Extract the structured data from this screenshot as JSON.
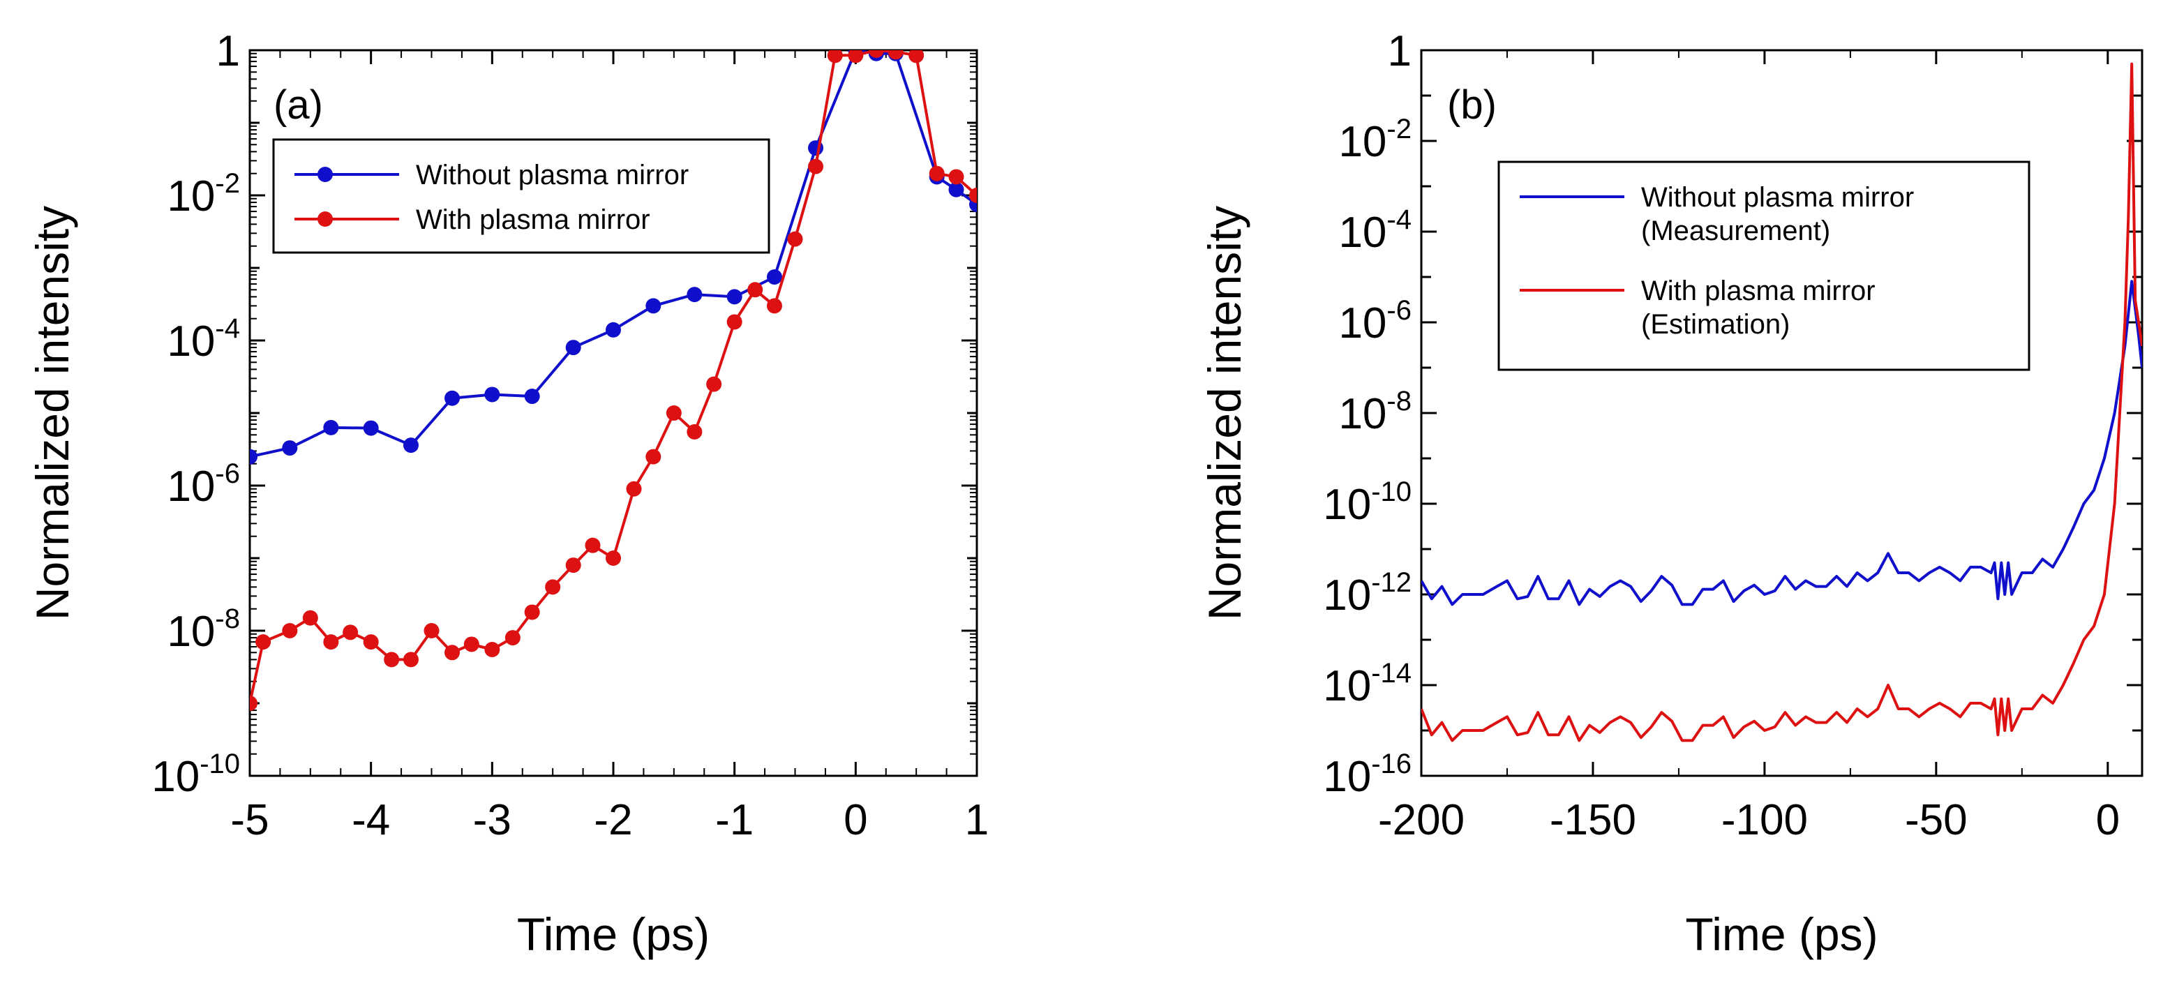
{
  "colors": {
    "without": "#1010cc",
    "with": "#dd1111",
    "axis": "#000000"
  },
  "chart_data": [
    {
      "type": "line",
      "panel_label": "(a)",
      "xlabel": "Time (ps)",
      "ylabel": "Normalized intensity",
      "xlim": [
        -5,
        1
      ],
      "ylim": [
        1e-10,
        1
      ],
      "yscale": "log",
      "x_ticks": [
        {
          "value": -5,
          "label": "-5"
        },
        {
          "value": -4,
          "label": "-4"
        },
        {
          "value": -3,
          "label": "-3"
        },
        {
          "value": -2,
          "label": "-2"
        },
        {
          "value": -1,
          "label": "-1"
        },
        {
          "value": 0,
          "label": "0"
        },
        {
          "value": 1,
          "label": "1"
        }
      ],
      "y_ticks": [
        {
          "exp": 0,
          "base": "1",
          "sup": ""
        },
        {
          "exp": -2,
          "base": "10",
          "sup": "-2"
        },
        {
          "exp": -4,
          "base": "10",
          "sup": "-4"
        },
        {
          "exp": -6,
          "base": "10",
          "sup": "-6"
        },
        {
          "exp": -8,
          "base": "10",
          "sup": "-8"
        },
        {
          "exp": -10,
          "base": "10",
          "sup": "-10"
        }
      ],
      "legend": {
        "position": "upper-left",
        "entries": [
          "Without plasma mirror",
          "With plasma mirror"
        ]
      },
      "series": [
        {
          "name": "Without plasma mirror",
          "color": "#1010cc",
          "markers": true,
          "x": [
            -5.0,
            -4.67,
            -4.33,
            -4.0,
            -3.67,
            -3.33,
            -3.0,
            -2.67,
            -2.33,
            -2.0,
            -1.67,
            -1.33,
            -1.0,
            -0.67,
            -0.33,
            0.0,
            0.17,
            0.33,
            0.67,
            0.83,
            1.0
          ],
          "y": [
            2.5e-06,
            3.3e-06,
            6.3e-06,
            6.2e-06,
            3.6e-06,
            1.6e-05,
            1.8e-05,
            1.7e-05,
            8e-05,
            0.00014,
            0.0003,
            0.00043,
            0.0004,
            0.00075,
            0.045,
            1.0,
            0.9,
            0.9,
            0.018,
            0.012,
            0.0075
          ]
        },
        {
          "name": "With plasma mirror",
          "color": "#dd1111",
          "markers": true,
          "x": [
            -5.0,
            -4.89,
            -4.67,
            -4.5,
            -4.33,
            -4.17,
            -4.0,
            -3.83,
            -3.67,
            -3.5,
            -3.33,
            -3.17,
            -3.0,
            -2.83,
            -2.67,
            -2.5,
            -2.33,
            -2.17,
            -2.0,
            -1.83,
            -1.67,
            -1.5,
            -1.33,
            -1.17,
            -1.0,
            -0.83,
            -0.67,
            -0.5,
            -0.33,
            -0.17,
            0.0,
            0.17,
            0.33,
            0.5,
            0.67,
            0.83,
            1.0
          ],
          "y": [
            1e-09,
            7e-09,
            1e-08,
            1.5e-08,
            7e-09,
            9.5e-09,
            7e-09,
            4e-09,
            4e-09,
            1e-08,
            5e-09,
            6.5e-09,
            5.5e-09,
            8e-09,
            1.8e-08,
            4e-08,
            8e-08,
            1.5e-07,
            1e-07,
            9e-07,
            2.5e-06,
            1e-05,
            5.5e-06,
            2.5e-05,
            0.00018,
            0.0005,
            0.0003,
            0.0025,
            0.025,
            0.85,
            0.85,
            1.0,
            0.95,
            0.85,
            0.02,
            0.018,
            0.01
          ]
        }
      ]
    },
    {
      "type": "line",
      "panel_label": "(b)",
      "xlabel": "Time (ps)",
      "ylabel": "Normalized intensity",
      "xlim": [
        -200,
        10
      ],
      "ylim": [
        1e-16,
        1
      ],
      "yscale": "log",
      "x_ticks": [
        {
          "value": -200,
          "label": "-200"
        },
        {
          "value": -150,
          "label": "-150"
        },
        {
          "value": -100,
          "label": "-100"
        },
        {
          "value": -50,
          "label": "-50"
        },
        {
          "value": 0,
          "label": "0"
        }
      ],
      "y_ticks": [
        {
          "exp": 0,
          "base": "1",
          "sup": ""
        },
        {
          "exp": -2,
          "base": "10",
          "sup": "-2"
        },
        {
          "exp": -4,
          "base": "10",
          "sup": "-4"
        },
        {
          "exp": -6,
          "base": "10",
          "sup": "-6"
        },
        {
          "exp": -8,
          "base": "10",
          "sup": "-8"
        },
        {
          "exp": -10,
          "base": "10",
          "sup": "-10"
        },
        {
          "exp": -12,
          "base": "10",
          "sup": "-12"
        },
        {
          "exp": -14,
          "base": "10",
          "sup": "-14"
        },
        {
          "exp": -16,
          "base": "10",
          "sup": "-16"
        }
      ],
      "legend": {
        "position": "upper-left",
        "entries": [
          {
            "line1": "Without plasma mirror",
            "line2": "(Measurement)"
          },
          {
            "line1": "With plasma mirror",
            "line2": "(Estimation)"
          }
        ]
      },
      "series": [
        {
          "name": "Without plasma mirror (Measurement)",
          "color": "#1010cc",
          "markers": false,
          "x": [
            -200,
            -197,
            -194,
            -191,
            -188,
            -185,
            -182,
            -178,
            -175,
            -172,
            -169,
            -166,
            -163,
            -160,
            -157,
            -154,
            -151,
            -148,
            -145,
            -142,
            -139,
            -136,
            -133,
            -130,
            -127,
            -124,
            -121,
            -118,
            -115,
            -112,
            -109,
            -106,
            -103,
            -100,
            -97,
            -94,
            -91,
            -88,
            -85,
            -82,
            -79,
            -76,
            -73,
            -70,
            -67,
            -64,
            -61,
            -58,
            -55,
            -52,
            -49,
            -46,
            -43,
            -40,
            -37,
            -34,
            -33,
            -32,
            -31,
            -30,
            -29,
            -28,
            -25,
            -22,
            -19,
            -16,
            -13,
            -10,
            -7,
            -4,
            -1,
            2,
            5,
            7,
            8,
            9,
            10
          ],
          "y": [
            2e-12,
            8e-13,
            1.5e-12,
            6e-13,
            1e-12,
            1e-12,
            1e-12,
            1.5e-12,
            2e-12,
            8e-13,
            9e-13,
            2.5e-12,
            8e-13,
            8e-13,
            2e-12,
            6e-13,
            1.3e-12,
            9e-13,
            1.5e-12,
            2e-12,
            1.5e-12,
            7e-13,
            1.2e-12,
            2.5e-12,
            1.6e-12,
            6e-13,
            6e-13,
            1.3e-12,
            1.3e-12,
            2e-12,
            7e-13,
            1.2e-12,
            1.6e-12,
            1e-12,
            1.2e-12,
            2.5e-12,
            1.3e-12,
            2e-12,
            1.5e-12,
            1.5e-12,
            2.5e-12,
            1.5e-12,
            3e-12,
            2e-12,
            3e-12,
            8e-12,
            3e-12,
            3e-12,
            2e-12,
            3e-12,
            4e-12,
            3e-12,
            2e-12,
            4e-12,
            4e-12,
            3e-12,
            5e-12,
            8e-13,
            5e-12,
            1e-12,
            5e-12,
            1e-12,
            3e-12,
            3e-12,
            6e-12,
            4e-12,
            1e-11,
            3e-11,
            1e-10,
            2e-10,
            1e-09,
            1e-08,
            3e-07,
            8e-06,
            2e-06,
            5e-07,
            1e-07
          ]
        },
        {
          "name": "With plasma mirror (Estimation)",
          "color": "#dd1111",
          "markers": false,
          "x": [
            -200,
            -197,
            -194,
            -191,
            -188,
            -185,
            -182,
            -178,
            -175,
            -172,
            -169,
            -166,
            -163,
            -160,
            -157,
            -154,
            -151,
            -148,
            -145,
            -142,
            -139,
            -136,
            -133,
            -130,
            -127,
            -124,
            -121,
            -118,
            -115,
            -112,
            -109,
            -106,
            -103,
            -100,
            -97,
            -94,
            -91,
            -88,
            -85,
            -82,
            -79,
            -76,
            -73,
            -70,
            -67,
            -64,
            -61,
            -58,
            -55,
            -52,
            -49,
            -46,
            -43,
            -40,
            -37,
            -34,
            -33,
            -32,
            -31,
            -30,
            -29,
            -28,
            -25,
            -22,
            -19,
            -16,
            -13,
            -10,
            -7,
            -4,
            -1,
            2,
            5,
            6,
            7,
            8,
            9,
            10
          ],
          "y": [
            3e-15,
            8e-16,
            1.5e-15,
            6e-16,
            1e-15,
            1e-15,
            1e-15,
            1.5e-15,
            2e-15,
            8e-16,
            9e-16,
            2.5e-15,
            8e-16,
            8e-16,
            2e-15,
            6e-16,
            1.3e-15,
            9e-16,
            1.5e-15,
            2e-15,
            1.5e-15,
            7e-16,
            1.2e-15,
            2.5e-15,
            1.6e-15,
            6e-16,
            6e-16,
            1.3e-15,
            1.3e-15,
            2e-15,
            7e-16,
            1.2e-15,
            1.6e-15,
            1e-15,
            1.2e-15,
            2.5e-15,
            1.3e-15,
            2e-15,
            1.5e-15,
            1.5e-15,
            2.5e-15,
            1.5e-15,
            3e-15,
            2e-15,
            3e-15,
            1e-14,
            3e-15,
            3e-15,
            2e-15,
            3e-15,
            4e-15,
            3e-15,
            2e-15,
            4e-15,
            4e-15,
            3e-15,
            5e-15,
            8e-16,
            5e-15,
            1e-15,
            5e-15,
            1e-15,
            3e-15,
            3e-15,
            6e-15,
            4e-15,
            1e-14,
            3e-14,
            1e-13,
            2e-13,
            1e-12,
            1e-10,
            1e-06,
            0.0002,
            0.5,
            3e-06,
            1e-06,
            3e-07
          ]
        }
      ]
    }
  ]
}
